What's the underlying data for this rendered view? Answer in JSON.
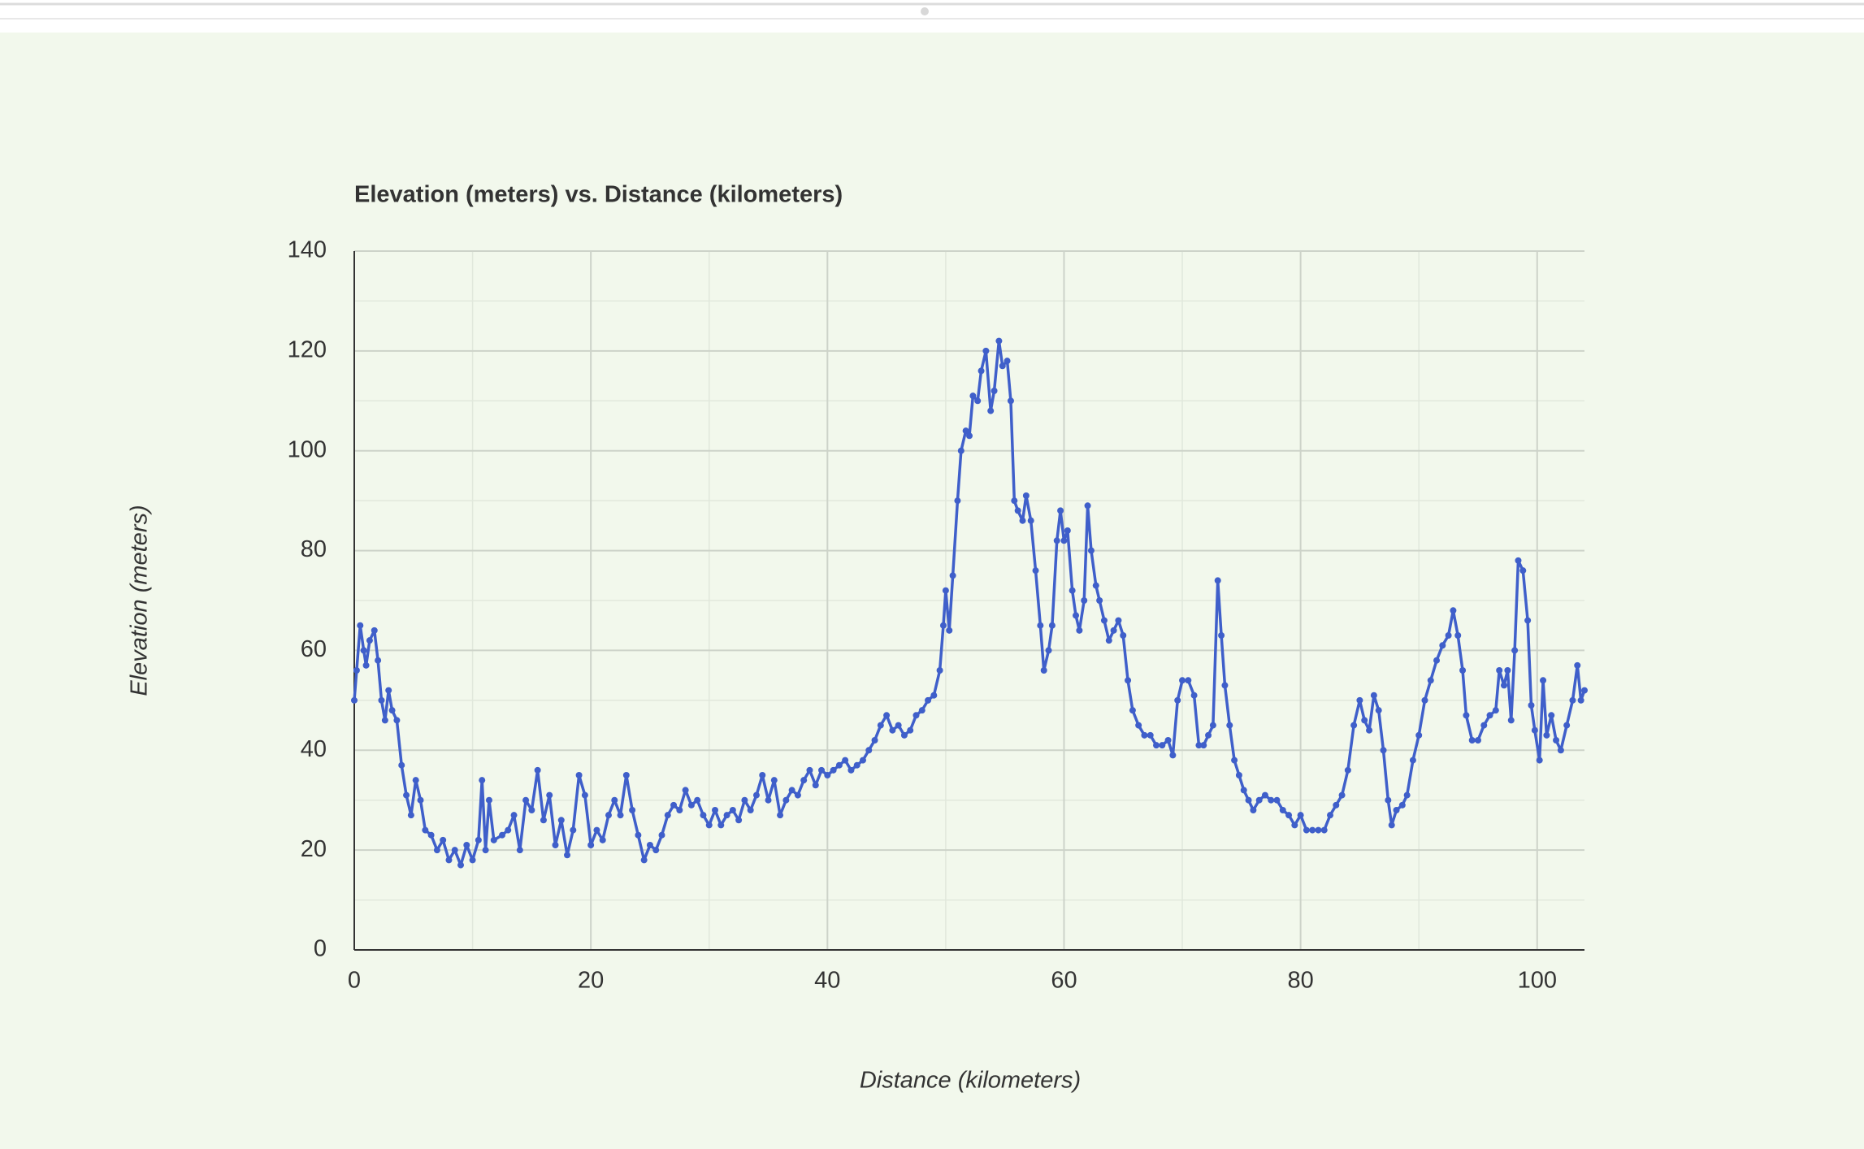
{
  "chart_data": {
    "type": "line",
    "title": "Elevation (meters) vs. Distance (kilometers)",
    "x_label": "Distance (kilometers)",
    "y_label": "Elevation (meters)",
    "color": "#3f5fca",
    "grid": true,
    "xlim": [
      0,
      104
    ],
    "ylim": [
      0,
      140
    ],
    "xticks": [
      0,
      20,
      40,
      60,
      80,
      100
    ],
    "yticks": [
      0,
      20,
      40,
      60,
      80,
      100,
      120,
      140
    ],
    "minor_xticks": [
      10,
      30,
      50,
      70,
      90
    ],
    "minor_yticks": [
      10,
      30,
      50,
      70,
      90,
      110,
      130
    ],
    "x": [
      0,
      0.2,
      0.5,
      0.8,
      1.0,
      1.3,
      1.7,
      2.0,
      2.3,
      2.6,
      2.9,
      3.2,
      3.6,
      4.0,
      4.4,
      4.8,
      5.2,
      5.6,
      6.0,
      6.5,
      7.0,
      7.5,
      8.0,
      8.5,
      9.0,
      9.5,
      10.0,
      10.5,
      10.8,
      11.1,
      11.4,
      11.8,
      12.5,
      13.0,
      13.5,
      14.0,
      14.5,
      15.0,
      15.5,
      16.0,
      16.5,
      17.0,
      17.5,
      18.0,
      18.5,
      19.0,
      19.5,
      20.0,
      20.5,
      21.0,
      21.5,
      22.0,
      22.5,
      23.0,
      23.5,
      24.0,
      24.5,
      25.0,
      25.5,
      26.0,
      26.5,
      27.0,
      27.5,
      28.0,
      28.5,
      29.0,
      29.5,
      30.0,
      30.5,
      31.0,
      31.5,
      32.0,
      32.5,
      33.0,
      33.5,
      34.0,
      34.5,
      35.0,
      35.5,
      36.0,
      36.5,
      37.0,
      37.5,
      38.0,
      38.5,
      39.0,
      39.5,
      40.0,
      40.5,
      41.0,
      41.5,
      42.0,
      42.5,
      43.0,
      43.5,
      44.0,
      44.5,
      45.0,
      45.5,
      46.0,
      46.5,
      47.0,
      47.5,
      48.0,
      48.5,
      49.0,
      49.5,
      49.8,
      50.0,
      50.3,
      50.6,
      51.0,
      51.3,
      51.7,
      52.0,
      52.3,
      52.7,
      53.0,
      53.4,
      53.8,
      54.1,
      54.5,
      54.8,
      55.2,
      55.5,
      55.8,
      56.1,
      56.5,
      56.8,
      57.2,
      57.6,
      58.0,
      58.3,
      58.7,
      59.0,
      59.4,
      59.7,
      60.0,
      60.3,
      60.7,
      61.0,
      61.3,
      61.7,
      62.0,
      62.3,
      62.7,
      63.0,
      63.4,
      63.8,
      64.2,
      64.6,
      65.0,
      65.4,
      65.8,
      66.3,
      66.8,
      67.3,
      67.8,
      68.3,
      68.8,
      69.2,
      69.6,
      70.0,
      70.5,
      71.0,
      71.4,
      71.8,
      72.2,
      72.6,
      73.0,
      73.3,
      73.6,
      74.0,
      74.4,
      74.8,
      75.2,
      75.6,
      76.0,
      76.5,
      77.0,
      77.5,
      78.0,
      78.5,
      79.0,
      79.5,
      80.0,
      80.5,
      81.0,
      81.5,
      82.0,
      82.5,
      83.0,
      83.5,
      84.0,
      84.5,
      85.0,
      85.4,
      85.8,
      86.2,
      86.6,
      87.0,
      87.4,
      87.7,
      88.1,
      88.6,
      89.0,
      89.5,
      90.0,
      90.5,
      91.0,
      91.5,
      92.0,
      92.5,
      92.9,
      93.3,
      93.7,
      94.0,
      94.5,
      95.0,
      95.5,
      96.0,
      96.5,
      96.8,
      97.2,
      97.5,
      97.8,
      98.1,
      98.4,
      98.8,
      99.2,
      99.5,
      99.8,
      100.2,
      100.5,
      100.8,
      101.2,
      101.6,
      102.0,
      102.5,
      103.0,
      103.4,
      103.7,
      104.0
    ],
    "values": [
      50,
      56,
      65,
      60,
      57,
      62,
      64,
      58,
      50,
      46,
      52,
      48,
      46,
      37,
      31,
      27,
      34,
      30,
      24,
      23,
      20,
      22,
      18,
      20,
      17,
      21,
      18,
      22,
      34,
      20,
      30,
      22,
      23,
      24,
      27,
      20,
      30,
      28,
      36,
      26,
      31,
      21,
      26,
      19,
      24,
      35,
      31,
      21,
      24,
      22,
      27,
      30,
      27,
      35,
      28,
      23,
      18,
      21,
      20,
      23,
      27,
      29,
      28,
      32,
      29,
      30,
      27,
      25,
      28,
      25,
      27,
      28,
      26,
      30,
      28,
      31,
      35,
      30,
      34,
      27,
      30,
      32,
      31,
      34,
      36,
      33,
      36,
      35,
      36,
      37,
      38,
      36,
      37,
      38,
      40,
      42,
      45,
      47,
      44,
      45,
      43,
      44,
      47,
      48,
      50,
      51,
      56,
      65,
      72,
      64,
      75,
      90,
      100,
      104,
      103,
      111,
      110,
      116,
      120,
      108,
      112,
      122,
      117,
      118,
      110,
      90,
      88,
      86,
      91,
      86,
      76,
      65,
      56,
      60,
      65,
      82,
      88,
      82,
      84,
      72,
      67,
      64,
      70,
      89,
      80,
      73,
      70,
      66,
      62,
      64,
      66,
      63,
      54,
      48,
      45,
      43,
      43,
      41,
      41,
      42,
      39,
      50,
      54,
      54,
      51,
      41,
      41,
      43,
      45,
      74,
      63,
      53,
      45,
      38,
      35,
      32,
      30,
      28,
      30,
      31,
      30,
      30,
      28,
      27,
      25,
      27,
      24,
      24,
      24,
      24,
      27,
      29,
      31,
      36,
      45,
      50,
      46,
      44,
      51,
      48,
      40,
      30,
      25,
      28,
      29,
      31,
      38,
      43,
      50,
      54,
      58,
      61,
      63,
      68,
      63,
      56,
      47,
      42,
      42,
      45,
      47,
      48,
      56,
      53,
      56,
      46,
      60,
      78,
      76,
      66,
      49,
      44,
      38,
      54,
      43,
      47,
      42,
      40,
      45,
      50,
      57,
      50,
      52
    ]
  }
}
